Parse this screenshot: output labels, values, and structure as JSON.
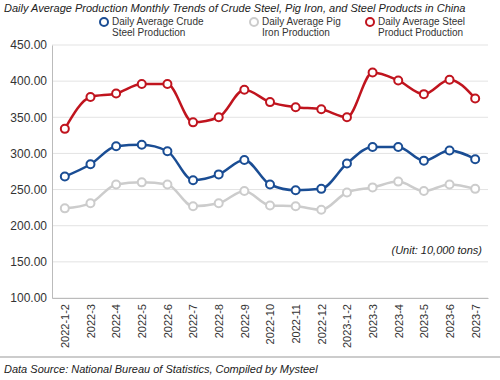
{
  "chart_data": {
    "type": "line",
    "title": "Daily Average Production Monthly Trends of Crude Steel, Pig Iron, and Steel Products in China",
    "annotations": [
      "(Unit: 10,000 tons)",
      "Data Source: National Bureau of Statistics, Compiled by Mysteel"
    ],
    "categories": [
      "2022-1-2",
      "2022-3",
      "2022-4",
      "2022-5",
      "2022-6",
      "2022-7",
      "2022-8",
      "2022-9",
      "2022-10",
      "2022-11",
      "2022-12",
      "2023-1-2",
      "2023-3",
      "2023-4",
      "2023-5",
      "2023-6",
      "2023-7"
    ],
    "series": [
      {
        "name": "Daily Average Crude Steel Production",
        "color": "#1a4d94",
        "marker": "circle",
        "line_style": "solid",
        "values": [
          268,
          285,
          310,
          312,
          303,
          263,
          271,
          291,
          257,
          249,
          251,
          286,
          309,
          309,
          290,
          304,
          292
        ]
      },
      {
        "name": "Daily Average Pig Iron Production",
        "color": "#cccccc",
        "marker": "circle",
        "line_style": "solid",
        "values": [
          224,
          231,
          257,
          260,
          257,
          227,
          231,
          248,
          228,
          227,
          222,
          246,
          253,
          261,
          248,
          257,
          251
        ]
      },
      {
        "name": "Daily Average Steel Product Production",
        "color": "#c0141e",
        "marker": "circle",
        "line_style": "solid",
        "values": [
          334,
          378,
          383,
          396,
          396,
          343,
          350,
          388,
          371,
          364,
          361,
          350,
          412,
          401,
          382,
          402,
          376
        ]
      }
    ],
    "ylim": [
      100,
      450
    ],
    "yticks": [
      {
        "value": 100,
        "label": "100.00"
      },
      {
        "value": 150,
        "label": "150.00"
      },
      {
        "value": 200,
        "label": "200.00"
      },
      {
        "value": 250,
        "label": "250.00"
      },
      {
        "value": 300,
        "label": "300.00"
      },
      {
        "value": 350,
        "label": "350.00"
      },
      {
        "value": 400,
        "label": "400.00"
      },
      {
        "value": 450,
        "label": "450.00"
      }
    ],
    "grid": true,
    "legend": "top"
  }
}
